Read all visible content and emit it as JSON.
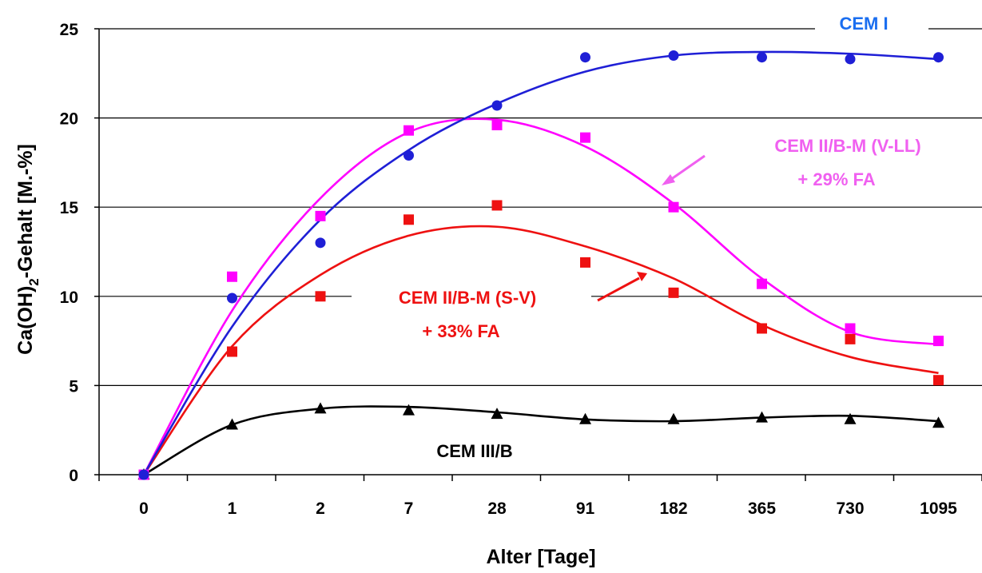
{
  "chart_data": {
    "type": "scatter",
    "title": "",
    "xlabel": "Alter [Tage]",
    "ylabel_main": "Ca(OH)",
    "ylabel_sub": "2",
    "ylabel_rest": "-Gehalt [M.-%]",
    "x_categories": [
      "0",
      "1",
      "2",
      "7",
      "28",
      "91",
      "182",
      "365",
      "730",
      "1095"
    ],
    "y_ticks": [
      "0",
      "5",
      "10",
      "15",
      "20",
      "25"
    ],
    "ylim": [
      0,
      25
    ],
    "grid": "horizontal",
    "series": [
      {
        "name": "CEM I",
        "label_lines": [
          "CEM I"
        ],
        "color": "#1f1fd6",
        "label_color": "#1a6ef0",
        "marker": "circle",
        "values": [
          0,
          9.9,
          13.0,
          17.9,
          20.7,
          23.4,
          23.5,
          23.4,
          23.3,
          23.4
        ],
        "trend": [
          0,
          8.3,
          14.3,
          18.2,
          20.8,
          22.6,
          23.5,
          23.7,
          23.6,
          23.3
        ]
      },
      {
        "name": "CEM II/B-M (V-LL) + 29% FA",
        "label_lines": [
          "CEM II/B-M (V-LL)",
          "+ 29% FA"
        ],
        "color": "#ff00ff",
        "label_color": "#f060f0",
        "marker": "square",
        "values": [
          0,
          11.1,
          14.5,
          19.3,
          19.6,
          18.9,
          15.0,
          10.7,
          8.2,
          7.5
        ],
        "trend": [
          0,
          9.2,
          15.5,
          19.2,
          19.9,
          18.4,
          15.2,
          11.0,
          8.0,
          7.3
        ]
      },
      {
        "name": "CEM II/B-M (S-V) + 33% FA",
        "label_lines": [
          "CEM II/B-M (S-V)",
          "+ 33% FA"
        ],
        "color": "#ee1111",
        "label_color": "#ee1111",
        "marker": "square",
        "values": [
          0,
          6.9,
          10.0,
          14.3,
          15.1,
          11.9,
          10.2,
          8.2,
          7.6,
          5.3
        ],
        "trend": [
          0,
          7.2,
          11.2,
          13.4,
          13.9,
          12.8,
          11.0,
          8.4,
          6.6,
          5.7
        ]
      },
      {
        "name": "CEM III/B",
        "label_lines": [
          "CEM III/B"
        ],
        "color": "#000000",
        "label_color": "#000000",
        "marker": "triangle",
        "values": [
          0,
          2.8,
          3.7,
          3.6,
          3.4,
          3.1,
          3.1,
          3.2,
          3.1,
          2.9
        ],
        "trend": [
          0,
          2.8,
          3.7,
          3.8,
          3.5,
          3.1,
          3.0,
          3.2,
          3.3,
          3.0
        ]
      }
    ]
  }
}
